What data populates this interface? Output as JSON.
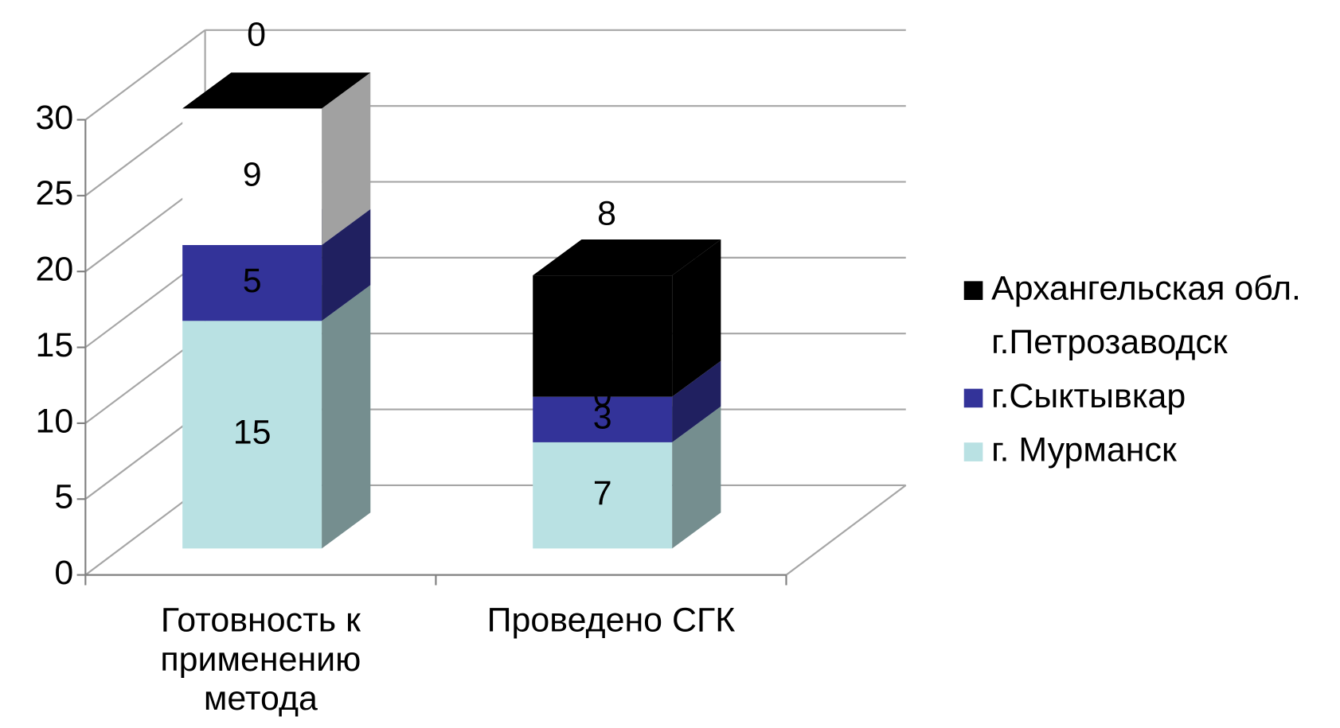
{
  "chart_data": {
    "type": "bar3d_stacked",
    "categories": [
      "Готовность к применению метода",
      "Проведено СГК"
    ],
    "series": [
      {
        "name": "г. Мурманск",
        "color": "#b9e1e3",
        "values": [
          15,
          7
        ]
      },
      {
        "name": "г.Сыктывкар",
        "color": "#333399",
        "values": [
          5,
          3
        ]
      },
      {
        "name": "г.Петрозаводск",
        "color": "#ffffff",
        "values": [
          9,
          0
        ]
      },
      {
        "name": "Архангельская обл.",
        "color": "#000000",
        "values": [
          0,
          8
        ]
      }
    ],
    "ylim": [
      0,
      30
    ],
    "yticks": [
      0,
      5,
      10,
      15,
      20,
      25,
      30
    ],
    "grid": true,
    "legend": "right"
  }
}
